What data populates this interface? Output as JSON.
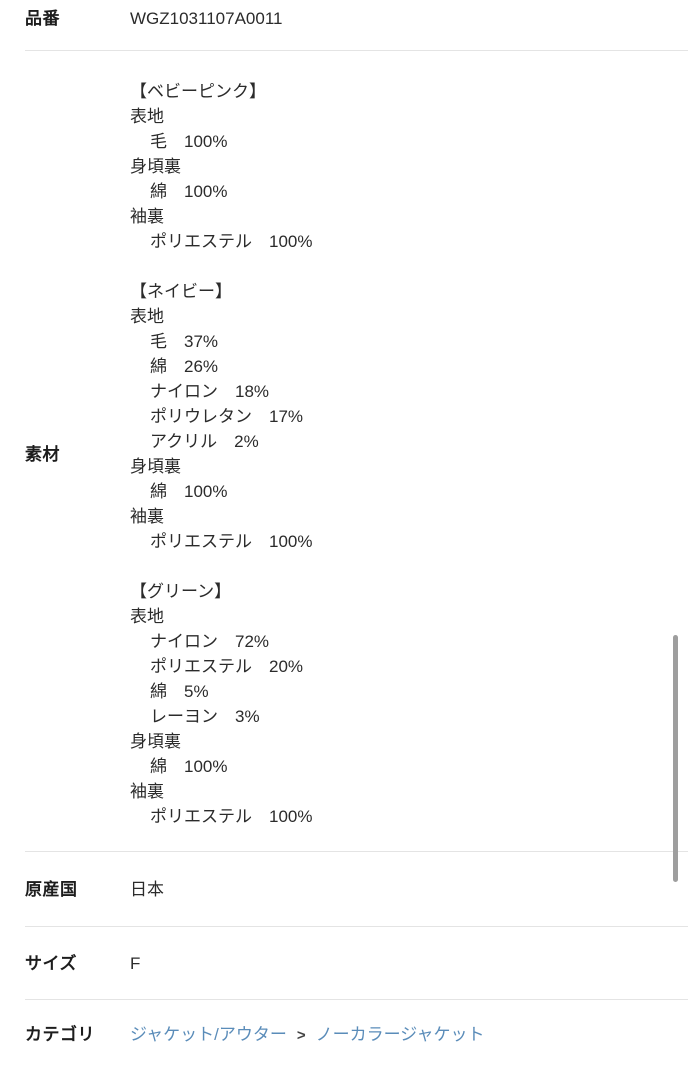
{
  "colors": {
    "background": "#ffffff",
    "divider": "#e4e4e4",
    "label_text": "#1d1d1d",
    "body_text": "#2b2b2b",
    "link": "#5a8cb9",
    "separator": "#444444",
    "scrollbar": "#9e9e9e"
  },
  "rows": {
    "product_number": {
      "label": "品番",
      "value": "WGZ1031107A0011"
    },
    "material": {
      "label": "素材"
    },
    "origin": {
      "label": "原産国",
      "value": "日本"
    },
    "size": {
      "label": "サイズ",
      "value": "F"
    },
    "category": {
      "label": "カテゴリ",
      "links": [
        "ジャケット/アウター",
        "ノーカラージャケット"
      ],
      "separator": ">"
    }
  },
  "materials": [
    {
      "color_name": "【ベビーピンク】",
      "groups": [
        {
          "part": "表地",
          "components": [
            {
              "name": "毛",
              "pct": "100%"
            }
          ]
        },
        {
          "part": "身頃裏",
          "components": [
            {
              "name": "綿",
              "pct": "100%"
            }
          ]
        },
        {
          "part": "袖裏",
          "components": [
            {
              "name": "ポリエステル",
              "pct": "100%"
            }
          ]
        }
      ]
    },
    {
      "color_name": "【ネイビー】",
      "groups": [
        {
          "part": "表地",
          "components": [
            {
              "name": "毛",
              "pct": "37%"
            },
            {
              "name": "綿",
              "pct": "26%"
            },
            {
              "name": "ナイロン",
              "pct": "18%"
            },
            {
              "name": "ポリウレタン",
              "pct": "17%"
            },
            {
              "name": "アクリル",
              "pct": "2%"
            }
          ]
        },
        {
          "part": "身頃裏",
          "components": [
            {
              "name": "綿",
              "pct": "100%"
            }
          ]
        },
        {
          "part": "袖裏",
          "components": [
            {
              "name": "ポリエステル",
              "pct": "100%"
            }
          ]
        }
      ]
    },
    {
      "color_name": "【グリーン】",
      "groups": [
        {
          "part": "表地",
          "components": [
            {
              "name": "ナイロン",
              "pct": "72%"
            },
            {
              "name": "ポリエステル",
              "pct": "20%"
            },
            {
              "name": "綿",
              "pct": "5%"
            },
            {
              "name": "レーヨン",
              "pct": "3%"
            }
          ]
        },
        {
          "part": "身頃裏",
          "components": [
            {
              "name": "綿",
              "pct": "100%"
            }
          ]
        },
        {
          "part": "袖裏",
          "components": [
            {
              "name": "ポリエステル",
              "pct": "100%"
            }
          ]
        }
      ]
    }
  ]
}
